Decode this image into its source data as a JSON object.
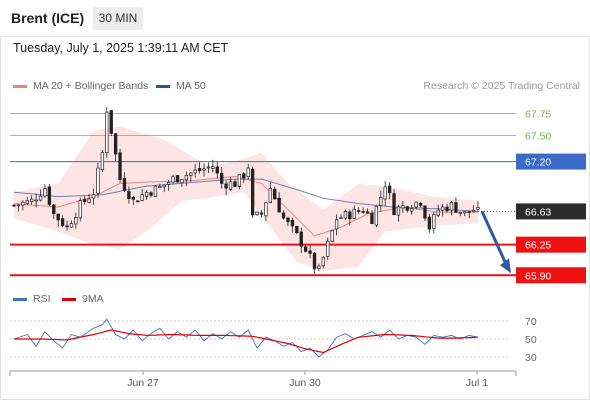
{
  "header": {
    "instrument": "Brent (ICE)",
    "timeframe": "30 MIN",
    "datetime": "Tuesday, July 1, 2025 1:39:11 AM CET"
  },
  "legend": {
    "ma20_label": "MA 20 + Bollinger Bands",
    "ma50_label": "MA 50",
    "copyright": "Research © 2025 Trading Central"
  },
  "rsi_legend": {
    "rsi_label": "RSI",
    "ma_label": "9MA"
  },
  "colors": {
    "ma20": "#f08080",
    "ma50": "#2f5496",
    "bollinger_fill": "#fde2e2",
    "resistance_green": "#7cb342",
    "level_blue": "#3a6bc8",
    "support_red": "#e11",
    "candle": "#222222",
    "arrow": "#2c5aa0",
    "rsi": "#4472c4",
    "rsi_ma": "#e00000"
  },
  "chart_data": [
    {
      "type": "candlestick",
      "y_range": [
        65.8,
        67.95
      ],
      "x_ticks": [
        "Jun 27",
        "Jun 30",
        "Jul 1"
      ],
      "last_price": "66.63",
      "levels": [
        {
          "value": 67.75,
          "label": "67.75",
          "kind": "resistance-green"
        },
        {
          "value": 67.5,
          "label": "67.50",
          "kind": "resistance-green"
        },
        {
          "value": 67.2,
          "label": "67.20",
          "kind": "pivot-blue"
        },
        {
          "value": 66.25,
          "label": "66.25",
          "kind": "support-red"
        },
        {
          "value": 65.9,
          "label": "65.90",
          "kind": "support-red"
        }
      ],
      "anchors": [
        [
          0,
          66.7
        ],
        [
          4,
          66.75
        ],
        [
          7,
          66.9
        ],
        [
          9,
          66.6
        ],
        [
          12,
          66.45
        ],
        [
          15,
          66.7
        ],
        [
          18,
          66.85
        ],
        [
          20,
          67.3
        ],
        [
          21,
          67.8
        ],
        [
          22,
          67.55
        ],
        [
          24,
          67.0
        ],
        [
          27,
          66.75
        ],
        [
          30,
          66.85
        ],
        [
          33,
          66.9
        ],
        [
          36,
          67.0
        ],
        [
          39,
          67.05
        ],
        [
          42,
          67.1
        ],
        [
          45,
          67.15
        ],
        [
          47,
          66.95
        ],
        [
          50,
          66.95
        ],
        [
          52,
          67.05
        ],
        [
          53,
          67.15
        ],
        [
          54,
          66.55
        ],
        [
          56,
          66.6
        ],
        [
          58,
          66.9
        ],
        [
          61,
          66.55
        ],
        [
          64,
          66.35
        ],
        [
          66,
          66.2
        ],
        [
          68,
          66.0
        ],
        [
          69,
          65.95
        ],
        [
          71,
          66.25
        ],
        [
          73,
          66.55
        ],
        [
          76,
          66.6
        ],
        [
          79,
          66.65
        ],
        [
          81,
          66.55
        ],
        [
          83,
          66.8
        ],
        [
          84,
          66.95
        ],
        [
          86,
          66.65
        ],
        [
          89,
          66.7
        ],
        [
          92,
          66.75
        ],
        [
          94,
          66.45
        ],
        [
          96,
          66.65
        ],
        [
          99,
          66.7
        ],
        [
          102,
          66.6
        ],
        [
          104,
          66.65
        ],
        [
          105,
          66.62
        ]
      ],
      "series": [
        {
          "name": "MA 20 + Bollinger Bands",
          "upper": [
            [
              0,
              66.85
            ],
            [
              10,
              66.95
            ],
            [
              18,
              67.55
            ],
            [
              24,
              67.6
            ],
            [
              34,
              67.45
            ],
            [
              44,
              67.15
            ],
            [
              50,
              67.2
            ],
            [
              56,
              67.3
            ],
            [
              62,
              66.95
            ],
            [
              70,
              66.65
            ],
            [
              78,
              66.95
            ],
            [
              86,
              66.9
            ],
            [
              95,
              66.8
            ],
            [
              105,
              66.75
            ]
          ],
          "lower": [
            [
              0,
              66.55
            ],
            [
              10,
              66.4
            ],
            [
              18,
              66.25
            ],
            [
              24,
              66.2
            ],
            [
              30,
              66.4
            ],
            [
              38,
              66.75
            ],
            [
              46,
              66.8
            ],
            [
              52,
              66.85
            ],
            [
              58,
              66.45
            ],
            [
              64,
              66.05
            ],
            [
              70,
              65.95
            ],
            [
              78,
              66.0
            ],
            [
              84,
              66.4
            ],
            [
              92,
              66.45
            ],
            [
              105,
              66.5
            ]
          ],
          "mid": [
            [
              0,
              66.72
            ],
            [
              10,
              66.68
            ],
            [
              18,
              66.8
            ],
            [
              24,
              66.95
            ],
            [
              32,
              66.97
            ],
            [
              40,
              66.98
            ],
            [
              50,
              67.03
            ],
            [
              56,
              66.95
            ],
            [
              62,
              66.65
            ],
            [
              68,
              66.35
            ],
            [
              74,
              66.45
            ],
            [
              80,
              66.6
            ],
            [
              88,
              66.68
            ],
            [
              96,
              66.62
            ],
            [
              105,
              66.62
            ]
          ]
        },
        {
          "name": "MA 50",
          "values": [
            [
              0,
              66.85
            ],
            [
              10,
              66.8
            ],
            [
              20,
              66.82
            ],
            [
              30,
              66.92
            ],
            [
              40,
              66.96
            ],
            [
              50,
              67.0
            ],
            [
              56,
              67.0
            ],
            [
              64,
              66.88
            ],
            [
              70,
              66.78
            ],
            [
              78,
              66.72
            ],
            [
              86,
              66.68
            ],
            [
              96,
              66.66
            ],
            [
              105,
              66.63
            ]
          ]
        }
      ],
      "forecast_arrow": {
        "from_index": 105,
        "from": 66.63,
        "to": 65.9
      }
    },
    {
      "type": "line",
      "y_ticks": [
        "70",
        "50",
        "30"
      ],
      "y_range": [
        20,
        80
      ],
      "series": [
        {
          "name": "RSI",
          "values": [
            [
              0,
              50
            ],
            [
              3,
              55
            ],
            [
              5,
              42
            ],
            [
              7,
              58
            ],
            [
              9,
              48
            ],
            [
              11,
              40
            ],
            [
              13,
              55
            ],
            [
              15,
              52
            ],
            [
              18,
              62
            ],
            [
              20,
              66
            ],
            [
              21,
              72
            ],
            [
              23,
              55
            ],
            [
              25,
              50
            ],
            [
              27,
              60
            ],
            [
              29,
              48
            ],
            [
              31,
              56
            ],
            [
              33,
              62
            ],
            [
              35,
              50
            ],
            [
              37,
              58
            ],
            [
              39,
              52
            ],
            [
              41,
              60
            ],
            [
              43,
              48
            ],
            [
              45,
              56
            ],
            [
              47,
              50
            ],
            [
              49,
              58
            ],
            [
              51,
              52
            ],
            [
              53,
              60
            ],
            [
              55,
              40
            ],
            [
              57,
              52
            ],
            [
              59,
              48
            ],
            [
              61,
              42
            ],
            [
              63,
              46
            ],
            [
              65,
              36
            ],
            [
              67,
              40
            ],
            [
              69,
              30
            ],
            [
              71,
              38
            ],
            [
              73,
              52
            ],
            [
              75,
              56
            ],
            [
              77,
              50
            ],
            [
              79,
              54
            ],
            [
              81,
              58
            ],
            [
              83,
              52
            ],
            [
              85,
              60
            ],
            [
              87,
              50
            ],
            [
              89,
              54
            ],
            [
              91,
              52
            ],
            [
              93,
              44
            ],
            [
              95,
              54
            ],
            [
              97,
              52
            ],
            [
              99,
              54
            ],
            [
              101,
              50
            ],
            [
              103,
              54
            ],
            [
              105,
              52
            ]
          ]
        },
        {
          "name": "9MA",
          "values": [
            [
              0,
              50
            ],
            [
              6,
              50
            ],
            [
              12,
              49
            ],
            [
              18,
              55
            ],
            [
              22,
              60
            ],
            [
              26,
              56
            ],
            [
              30,
              54
            ],
            [
              36,
              55
            ],
            [
              42,
              54
            ],
            [
              48,
              54
            ],
            [
              54,
              53
            ],
            [
              58,
              49
            ],
            [
              62,
              45
            ],
            [
              66,
              39
            ],
            [
              70,
              35
            ],
            [
              74,
              44
            ],
            [
              78,
              52
            ],
            [
              84,
              55
            ],
            [
              90,
              54
            ],
            [
              96,
              51
            ],
            [
              100,
              51
            ],
            [
              105,
              52
            ]
          ]
        }
      ],
      "x_ticks": [
        "Jun 27",
        "Jun 30",
        "Jul 1"
      ]
    }
  ]
}
